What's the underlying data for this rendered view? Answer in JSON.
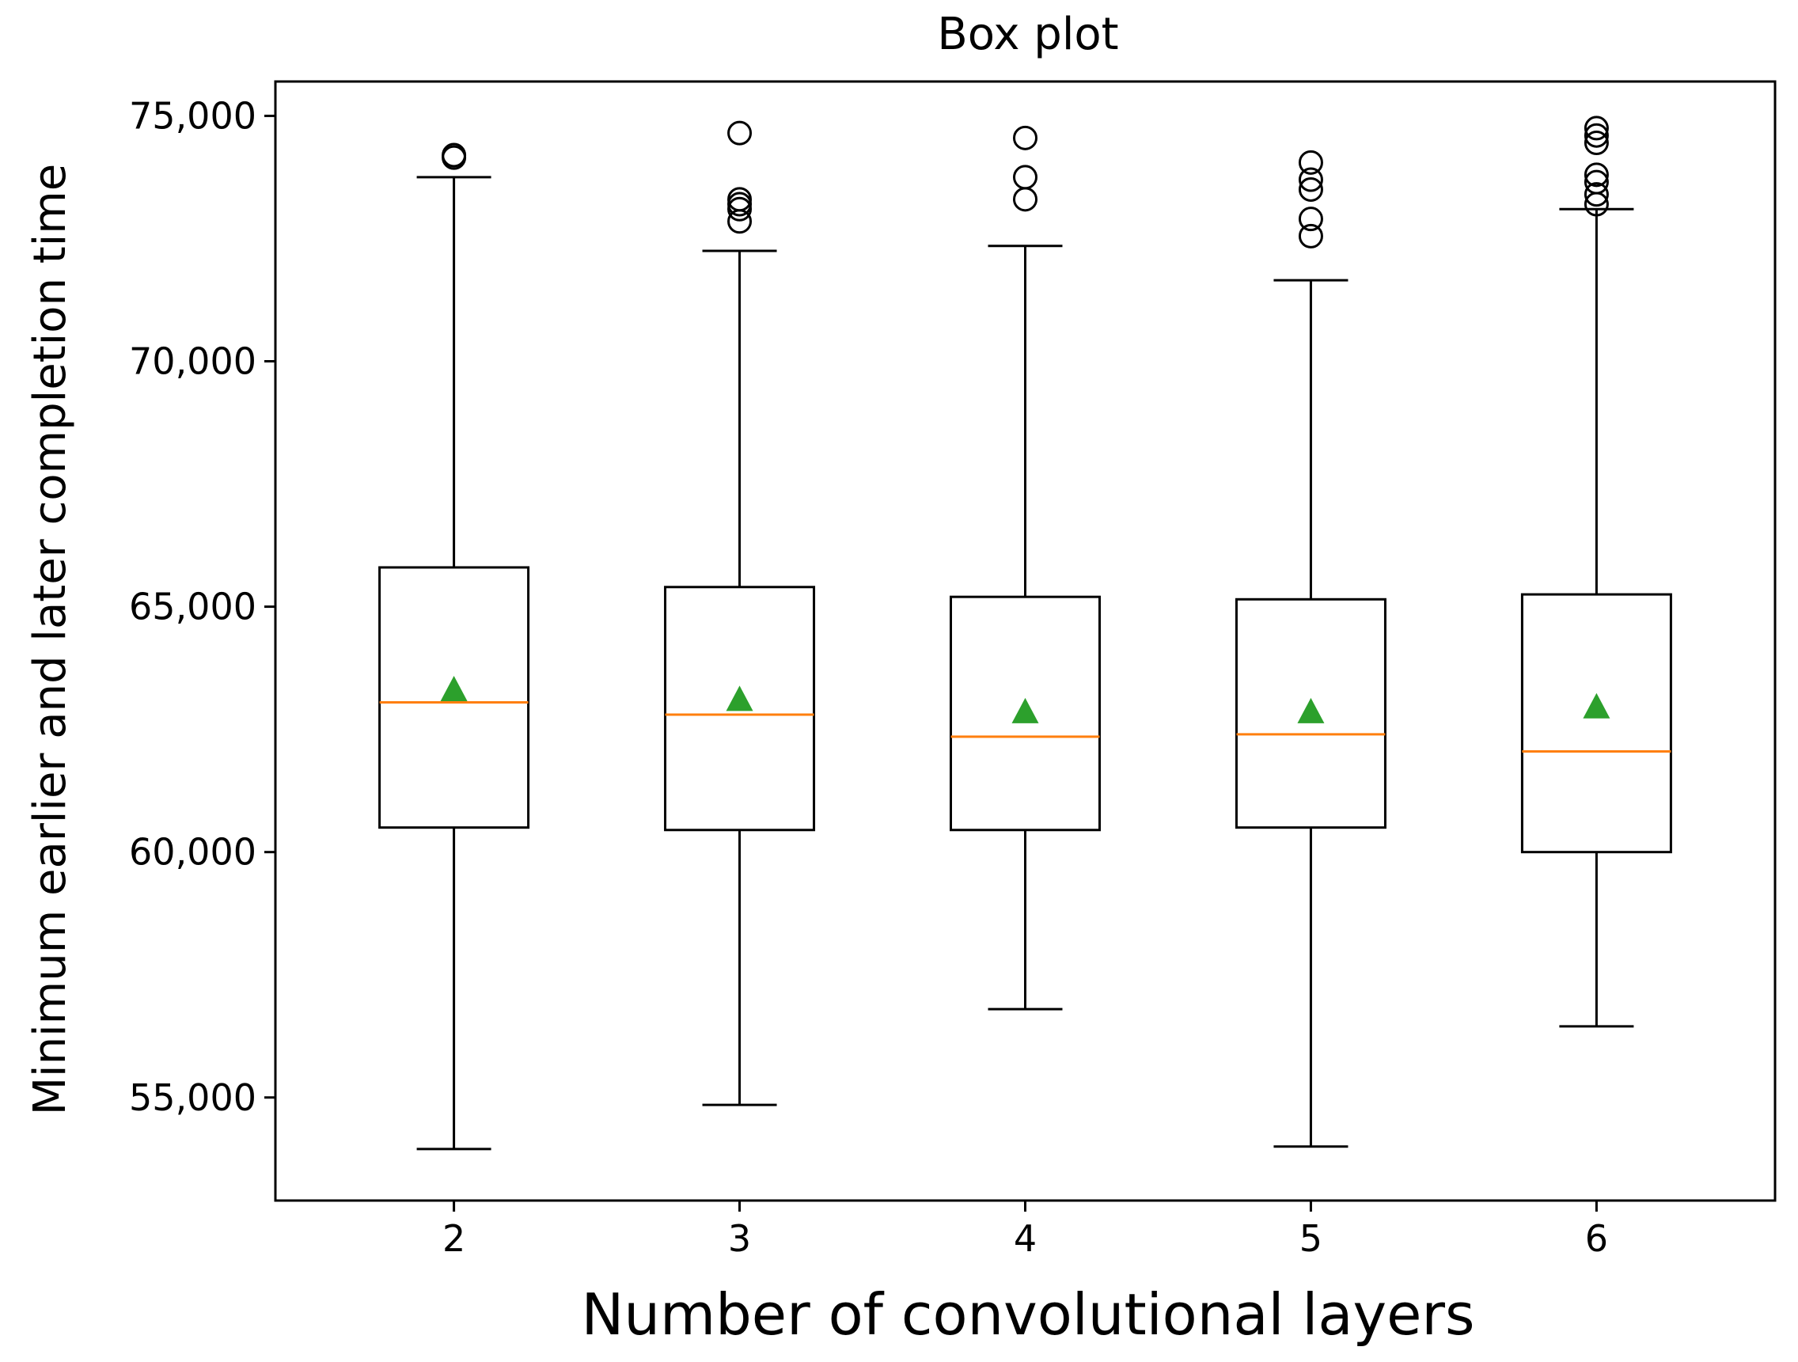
{
  "chart_data": {
    "type": "box",
    "title": "Box plot",
    "xlabel": "Number of convolutional layers",
    "ylabel": "Minimum earlier and later completion time",
    "ylim": [
      52900,
      75700
    ],
    "yticks": [
      55000,
      60000,
      65000,
      70000,
      75000
    ],
    "ytick_labels": [
      "55,000",
      "60,000",
      "65,000",
      "70,000",
      "75,000"
    ],
    "categories": [
      "2",
      "3",
      "4",
      "5",
      "6"
    ],
    "grid": false,
    "colors": {
      "median": "#ff7f0e",
      "mean": "#2ca02c",
      "box": "#000000"
    },
    "boxes": [
      {
        "label": "2",
        "whisker_low": 53950,
        "q1": 60500,
        "median": 63050,
        "q3": 65800,
        "whisker_high": 73750,
        "mean": 63300,
        "outliers": [
          74150,
          74200
        ]
      },
      {
        "label": "3",
        "whisker_low": 54850,
        "q1": 60450,
        "median": 62800,
        "q3": 65400,
        "whisker_high": 72250,
        "mean": 63100,
        "outliers": [
          72850,
          73100,
          73200,
          73300,
          74650
        ]
      },
      {
        "label": "4",
        "whisker_low": 56800,
        "q1": 60450,
        "median": 62350,
        "q3": 65200,
        "whisker_high": 72350,
        "mean": 62850,
        "outliers": [
          73300,
          73750,
          74550
        ]
      },
      {
        "label": "5",
        "whisker_low": 54000,
        "q1": 60500,
        "median": 62400,
        "q3": 65150,
        "whisker_high": 71650,
        "mean": 62850,
        "outliers": [
          72550,
          72900,
          73500,
          73700,
          74050
        ]
      },
      {
        "label": "6",
        "whisker_low": 56450,
        "q1": 60000,
        "median": 62050,
        "q3": 65250,
        "whisker_high": 73100,
        "mean": 62950,
        "outliers": [
          73200,
          73400,
          73650,
          73800,
          74450,
          74600,
          74750
        ]
      }
    ]
  }
}
